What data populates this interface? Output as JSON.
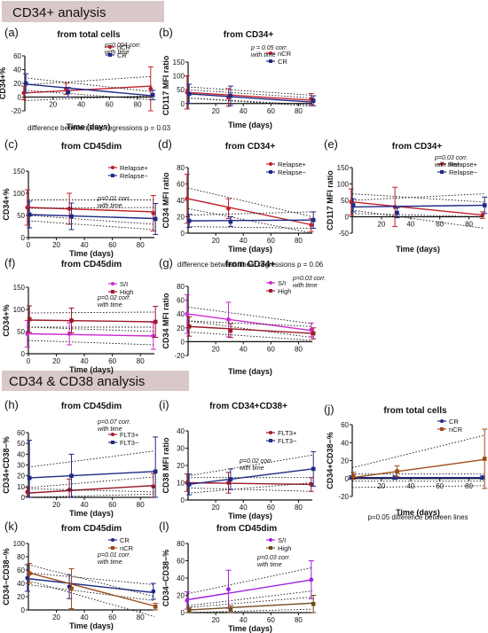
{
  "sections": [
    {
      "key": "s1",
      "title": "CD34+ analysis"
    },
    {
      "key": "s2",
      "title": "CD34 & CD38 analysis"
    }
  ],
  "panel_labels": [
    "(a)",
    "(b)",
    "(c)",
    "(d)",
    "(e)",
    "(f)",
    "(g)",
    "(h)",
    "(i)",
    "(j)",
    "(k)",
    "(l)"
  ],
  "chart_data": [
    {
      "id": "a",
      "type": "line",
      "title": "from total cells",
      "xlabel": "Time (days)",
      "ylabel": "CD34+%",
      "xlim": [
        0,
        90
      ],
      "ylim": [
        -20,
        60
      ],
      "xticks": [
        "20",
        "40",
        "60",
        "80"
      ],
      "yticks": [
        "-20",
        "0",
        "20",
        "40",
        "60"
      ],
      "annotation": "p=0.004 corr.\nwith time",
      "footnote": "difference between lines regressions p = 0.03",
      "legend_position": "top-right",
      "series": [
        {
          "name": "nCR",
          "color": "#c0202a",
          "x": [
            0,
            30,
            90
          ],
          "y": [
            6,
            12,
            12
          ],
          "err": [
            10,
            8,
            32
          ],
          "fit": [
            6,
            16
          ],
          "ci_low": [
            -5,
            2
          ],
          "ci_high": [
            18,
            30
          ]
        },
        {
          "name": "CR",
          "color": "#1f2a86",
          "x": [
            0,
            30,
            90
          ],
          "y": [
            20,
            7,
            3
          ],
          "err": [
            14,
            7,
            7
          ],
          "fit": [
            19,
            2
          ],
          "ci_low": [
            10,
            -4
          ],
          "ci_high": [
            28,
            8
          ]
        }
      ]
    },
    {
      "id": "b",
      "type": "line",
      "title": "from CD34+",
      "xlabel": "Time (days)",
      "ylabel": "CD117 MFI ratio",
      "xlim": [
        0,
        90
      ],
      "ylim": [
        -20,
        150
      ],
      "xticks": [
        "20",
        "40",
        "60",
        "80"
      ],
      "yticks": [
        "0",
        "50",
        "100",
        "150"
      ],
      "annotation": "p = 0.05 corr.\nwith time",
      "legend_position": "top-right",
      "series": [
        {
          "name": "nCR",
          "color": "#c0202a",
          "x": [
            0,
            30,
            90
          ],
          "y": [
            40,
            22,
            16
          ],
          "err": [
            60,
            32,
            20
          ],
          "fit": [
            40,
            12
          ],
          "ci_low": [
            20,
            -5
          ],
          "ci_high": [
            60,
            30
          ]
        },
        {
          "name": "CR",
          "color": "#1f2a86",
          "x": [
            0,
            30,
            90
          ],
          "y": [
            35,
            28,
            10
          ],
          "err": [
            35,
            35,
            18
          ],
          "fit": [
            35,
            5
          ],
          "ci_low": [
            20,
            -10
          ],
          "ci_high": [
            50,
            20
          ]
        }
      ]
    },
    {
      "id": "c",
      "type": "line",
      "title": "from CD45dim",
      "xlabel": "Time (days)",
      "ylabel": "CD34+%",
      "xlim": [
        0,
        90
      ],
      "ylim": [
        0,
        150
      ],
      "xticks": [
        "0",
        "20",
        "40",
        "60",
        "80"
      ],
      "yticks": [
        "0",
        "50",
        "100",
        "150"
      ],
      "annotation": "p=0.01 corr.\nwith time",
      "legend_position": "top-right",
      "series": [
        {
          "name": "Relapse+",
          "color": "#c0202a",
          "x": [
            0,
            30,
            90
          ],
          "y": [
            68,
            65,
            55
          ],
          "err": [
            40,
            35,
            40
          ],
          "fit": [
            68,
            58
          ],
          "ci_low": [
            50,
            30
          ],
          "ci_high": [
            85,
            85
          ]
        },
        {
          "name": "Relapse−",
          "color": "#1f2a86",
          "x": [
            0,
            30,
            90
          ],
          "y": [
            52,
            48,
            42
          ],
          "err": [
            30,
            30,
            35
          ],
          "fit": [
            52,
            43
          ],
          "ci_low": [
            38,
            18
          ],
          "ci_high": [
            66,
            68
          ]
        }
      ]
    },
    {
      "id": "d",
      "type": "line",
      "title": "from CD34+",
      "xlabel": "Time (days)",
      "ylabel": "CD34 MFI ratio",
      "xlim": [
        0,
        90
      ],
      "ylim": [
        0,
        80
      ],
      "xticks": [
        "20",
        "40",
        "60",
        "80"
      ],
      "yticks": [
        "0",
        "20",
        "40",
        "60",
        "80"
      ],
      "footnote": "difference between linear regressions p = 0.06",
      "legend_position": "top-right",
      "series": [
        {
          "name": "Relapse+",
          "color": "#c0202a",
          "x": [
            0,
            30,
            90
          ],
          "y": [
            42,
            30,
            10
          ],
          "err": [
            30,
            12,
            8
          ],
          "fit": [
            42,
            10
          ],
          "ci_low": [
            30,
            0
          ],
          "ci_high": [
            55,
            20
          ]
        },
        {
          "name": "Relapse−",
          "color": "#1f2a86",
          "x": [
            0,
            30,
            90
          ],
          "y": [
            15,
            14,
            16
          ],
          "err": [
            8,
            6,
            10
          ],
          "fit": [
            15,
            16
          ],
          "ci_low": [
            8,
            6
          ],
          "ci_high": [
            22,
            26
          ]
        }
      ]
    },
    {
      "id": "e",
      "type": "line",
      "title": "from CD34+",
      "xlabel": "Time (days)",
      "ylabel": "CD117 MFI ratio",
      "xlim": [
        0,
        90
      ],
      "ylim": [
        -50,
        150
      ],
      "xticks": [
        "20",
        "40",
        "60",
        "80"
      ],
      "yticks": [
        "-50",
        "0",
        "50",
        "100",
        "150"
      ],
      "annotation": "p=0.03 corr.\nwith time",
      "legend_position": "top-right",
      "series": [
        {
          "name": "Relapse+",
          "color": "#c0202a",
          "x": [
            0,
            30,
            90
          ],
          "y": [
            45,
            30,
            5
          ],
          "err": [
            40,
            60,
            10
          ],
          "fit": [
            45,
            5
          ],
          "ci_low": [
            20,
            -35
          ],
          "ci_high": [
            70,
            45
          ]
        },
        {
          "name": "Relapse−",
          "color": "#1f2a86",
          "x": [
            0,
            30,
            90
          ],
          "y": [
            35,
            12,
            35
          ],
          "err": [
            20,
            15,
            25
          ],
          "fit": [
            30,
            35
          ],
          "ci_low": [
            10,
            0
          ],
          "ci_high": [
            50,
            70
          ]
        }
      ]
    },
    {
      "id": "f",
      "type": "line",
      "title": "from CD45dim",
      "xlabel": "Time (days)",
      "ylabel": "CD34+%",
      "xlim": [
        0,
        90
      ],
      "ylim": [
        0,
        150
      ],
      "xticks": [
        "0",
        "20",
        "40",
        "60",
        "80"
      ],
      "yticks": [
        "0",
        "50",
        "100",
        "150"
      ],
      "annotation": "p=0.02 corr.\nwith time",
      "legend_position": "top-right",
      "series": [
        {
          "name": "S/I",
          "color": "#cc2bd0",
          "x": [
            0,
            30,
            90
          ],
          "y": [
            45,
            45,
            40
          ],
          "err": [
            30,
            25,
            30
          ],
          "fit": [
            45,
            40
          ],
          "ci_low": [
            30,
            20
          ],
          "ci_high": [
            60,
            60
          ]
        },
        {
          "name": "High",
          "color": "#9c1a2a",
          "x": [
            0,
            30,
            90
          ],
          "y": [
            78,
            75,
            72
          ],
          "err": [
            30,
            28,
            35
          ],
          "fit": [
            76,
            72
          ],
          "ci_low": [
            60,
            50
          ],
          "ci_high": [
            92,
            94
          ]
        }
      ]
    },
    {
      "id": "g",
      "type": "line",
      "title": "from CD34+",
      "xlabel": "Time (days)",
      "ylabel": "CD34 MFI ratio",
      "xlim": [
        0,
        90
      ],
      "ylim": [
        -20,
        80
      ],
      "xticks": [
        "20",
        "40",
        "60",
        "80"
      ],
      "yticks": [
        "-20",
        "0",
        "20",
        "40",
        "60",
        "80"
      ],
      "annotation": "p=0.03 corr.\nwith time",
      "legend_position": "top-right",
      "series": [
        {
          "name": "S/I",
          "color": "#cc2bd0",
          "x": [
            0,
            30,
            90
          ],
          "y": [
            40,
            32,
            17
          ],
          "err": [
            28,
            25,
            10
          ],
          "fit": [
            40,
            16
          ],
          "ci_low": [
            30,
            6
          ],
          "ci_high": [
            50,
            26
          ]
        },
        {
          "name": "High",
          "color": "#9c1a2a",
          "x": [
            0,
            30,
            90
          ],
          "y": [
            22,
            16,
            12
          ],
          "err": [
            14,
            10,
            8
          ],
          "fit": [
            22,
            12
          ],
          "ci_low": [
            14,
            2
          ],
          "ci_high": [
            30,
            22
          ]
        }
      ]
    },
    {
      "id": "h",
      "type": "line",
      "title": "from CD45dim",
      "xlabel": "Time (days)",
      "ylabel": "CD34+CD38−%",
      "xlim": [
        0,
        90
      ],
      "ylim": [
        0,
        60
      ],
      "xticks": [
        "20",
        "40",
        "60",
        "80"
      ],
      "yticks": [
        "0",
        "10",
        "20",
        "30",
        "40",
        "50",
        "60"
      ],
      "annotation": "p=0.07 corr.\nwith time",
      "legend_position": "top-right",
      "series": [
        {
          "name": "FLT3+",
          "color": "#9c1a2a",
          "x": [
            0,
            30,
            90
          ],
          "y": [
            5,
            7,
            10
          ],
          "err": [
            4,
            10,
            12
          ],
          "fit": [
            4,
            11
          ],
          "ci_low": [
            0,
            3
          ],
          "ci_high": [
            9,
            19
          ]
        },
        {
          "name": "FLT3−",
          "color": "#1f2a86",
          "x": [
            0,
            30,
            90
          ],
          "y": [
            18,
            20,
            24
          ],
          "err": [
            35,
            20,
            32
          ],
          "fit": [
            18,
            24
          ],
          "ci_low": [
            8,
            5
          ],
          "ci_high": [
            28,
            43
          ]
        }
      ]
    },
    {
      "id": "i",
      "type": "line",
      "title": "from CD34+CD38+",
      "xlabel": "Time (days)",
      "ylabel": "CD38 MFI ratio",
      "xlim": [
        0,
        90
      ],
      "ylim": [
        0,
        40
      ],
      "xticks": [
        "20",
        "40",
        "60",
        "80"
      ],
      "yticks": [
        "0",
        "10",
        "20",
        "30",
        "40"
      ],
      "annotation": "p=0.02 corr.\nwith time",
      "legend_position": "top-right",
      "series": [
        {
          "name": "FLT3+",
          "color": "#9c1a2a",
          "x": [
            0,
            30,
            90
          ],
          "y": [
            10,
            10,
            9
          ],
          "err": [
            5,
            6,
            4
          ],
          "fit": [
            10,
            9
          ],
          "ci_low": [
            7,
            5
          ],
          "ci_high": [
            13,
            13
          ]
        },
        {
          "name": "FLT3−",
          "color": "#1f2a86",
          "x": [
            0,
            30,
            90
          ],
          "y": [
            9,
            12,
            18
          ],
          "err": [
            6,
            6,
            10
          ],
          "fit": [
            9,
            18
          ],
          "ci_low": [
            4,
            10
          ],
          "ci_high": [
            14,
            26
          ]
        }
      ]
    },
    {
      "id": "j",
      "type": "line",
      "title": "from total cells",
      "xlabel": "Time (days)",
      "ylabel": "CD34+CD38−%",
      "xlim": [
        0,
        90
      ],
      "ylim": [
        -20,
        60
      ],
      "xticks": [
        "20",
        "40",
        "60",
        "80"
      ],
      "yticks": [
        "-20",
        "0",
        "20",
        "40",
        "60"
      ],
      "footnote": "p=0.05 difference between lines",
      "legend_position": "top-right",
      "series": [
        {
          "name": "CR",
          "color": "#1f2a86",
          "x": [
            0,
            30,
            90
          ],
          "y": [
            1,
            1,
            1
          ],
          "err": [
            2,
            2,
            2
          ],
          "fit": [
            1,
            1
          ],
          "ci_low": [
            -3,
            -3
          ],
          "ci_high": [
            5,
            5
          ]
        },
        {
          "name": "nCR",
          "color": "#9c4a1a",
          "x": [
            0,
            30,
            90
          ],
          "y": [
            3,
            8,
            22
          ],
          "err": [
            4,
            6,
            33
          ],
          "fit": [
            1,
            21
          ],
          "ci_low": [
            -10,
            -8
          ],
          "ci_high": [
            12,
            48
          ]
        }
      ]
    },
    {
      "id": "k",
      "type": "line",
      "title": "from CD45dim",
      "xlabel": "Time (days)",
      "ylabel": "CD34−CD38−%",
      "xlim": [
        0,
        90
      ],
      "ylim": [
        0,
        100
      ],
      "xticks": [
        "20",
        "40",
        "60",
        "80"
      ],
      "yticks": [
        "0",
        "20",
        "40",
        "60",
        "80",
        "100"
      ],
      "annotation": "p=0.01 corr.\nwith time",
      "legend_position": "top-right",
      "series": [
        {
          "name": "CR",
          "color": "#1f2a86",
          "x": [
            0,
            30,
            90
          ],
          "y": [
            48,
            35,
            28
          ],
          "err": [
            20,
            18,
            12
          ],
          "fit": [
            47,
            26
          ],
          "ci_low": [
            38,
            14
          ],
          "ci_high": [
            56,
            38
          ]
        },
        {
          "name": "nCR",
          "color": "#9c4a1a",
          "x": [
            0,
            30,
            90
          ],
          "y": [
            55,
            32,
            5
          ],
          "err": [
            15,
            30,
            5
          ],
          "fit": [
            56,
            6
          ],
          "ci_low": [
            44,
            -10
          ],
          "ci_high": [
            68,
            20
          ]
        }
      ]
    },
    {
      "id": "l",
      "type": "line",
      "title": "from CD45dim",
      "xlabel": "Time (days)",
      "ylabel": "CD34−CD38−%",
      "xlim": [
        0,
        90
      ],
      "ylim": [
        0,
        80
      ],
      "xticks": [
        "20",
        "40",
        "60",
        "80"
      ],
      "yticks": [
        "0",
        "20",
        "40",
        "60",
        "80"
      ],
      "annotation": "p=0.03 corr.\nwith time",
      "legend_position": "top-right",
      "series": [
        {
          "name": "S/I",
          "color": "#a020e0",
          "x": [
            0,
            30,
            90
          ],
          "y": [
            14,
            27,
            38
          ],
          "err": [
            10,
            22,
            22
          ],
          "fit": [
            15,
            38
          ],
          "ci_low": [
            8,
            25
          ],
          "ci_high": [
            22,
            52
          ]
        },
        {
          "name": "High",
          "color": "#6e4a18",
          "x": [
            0,
            30,
            90
          ],
          "y": [
            3,
            4,
            10
          ],
          "err": [
            3,
            4,
            10
          ],
          "fit": [
            3,
            11
          ],
          "ci_low": [
            0,
            4
          ],
          "ci_high": [
            6,
            18
          ]
        }
      ]
    }
  ]
}
